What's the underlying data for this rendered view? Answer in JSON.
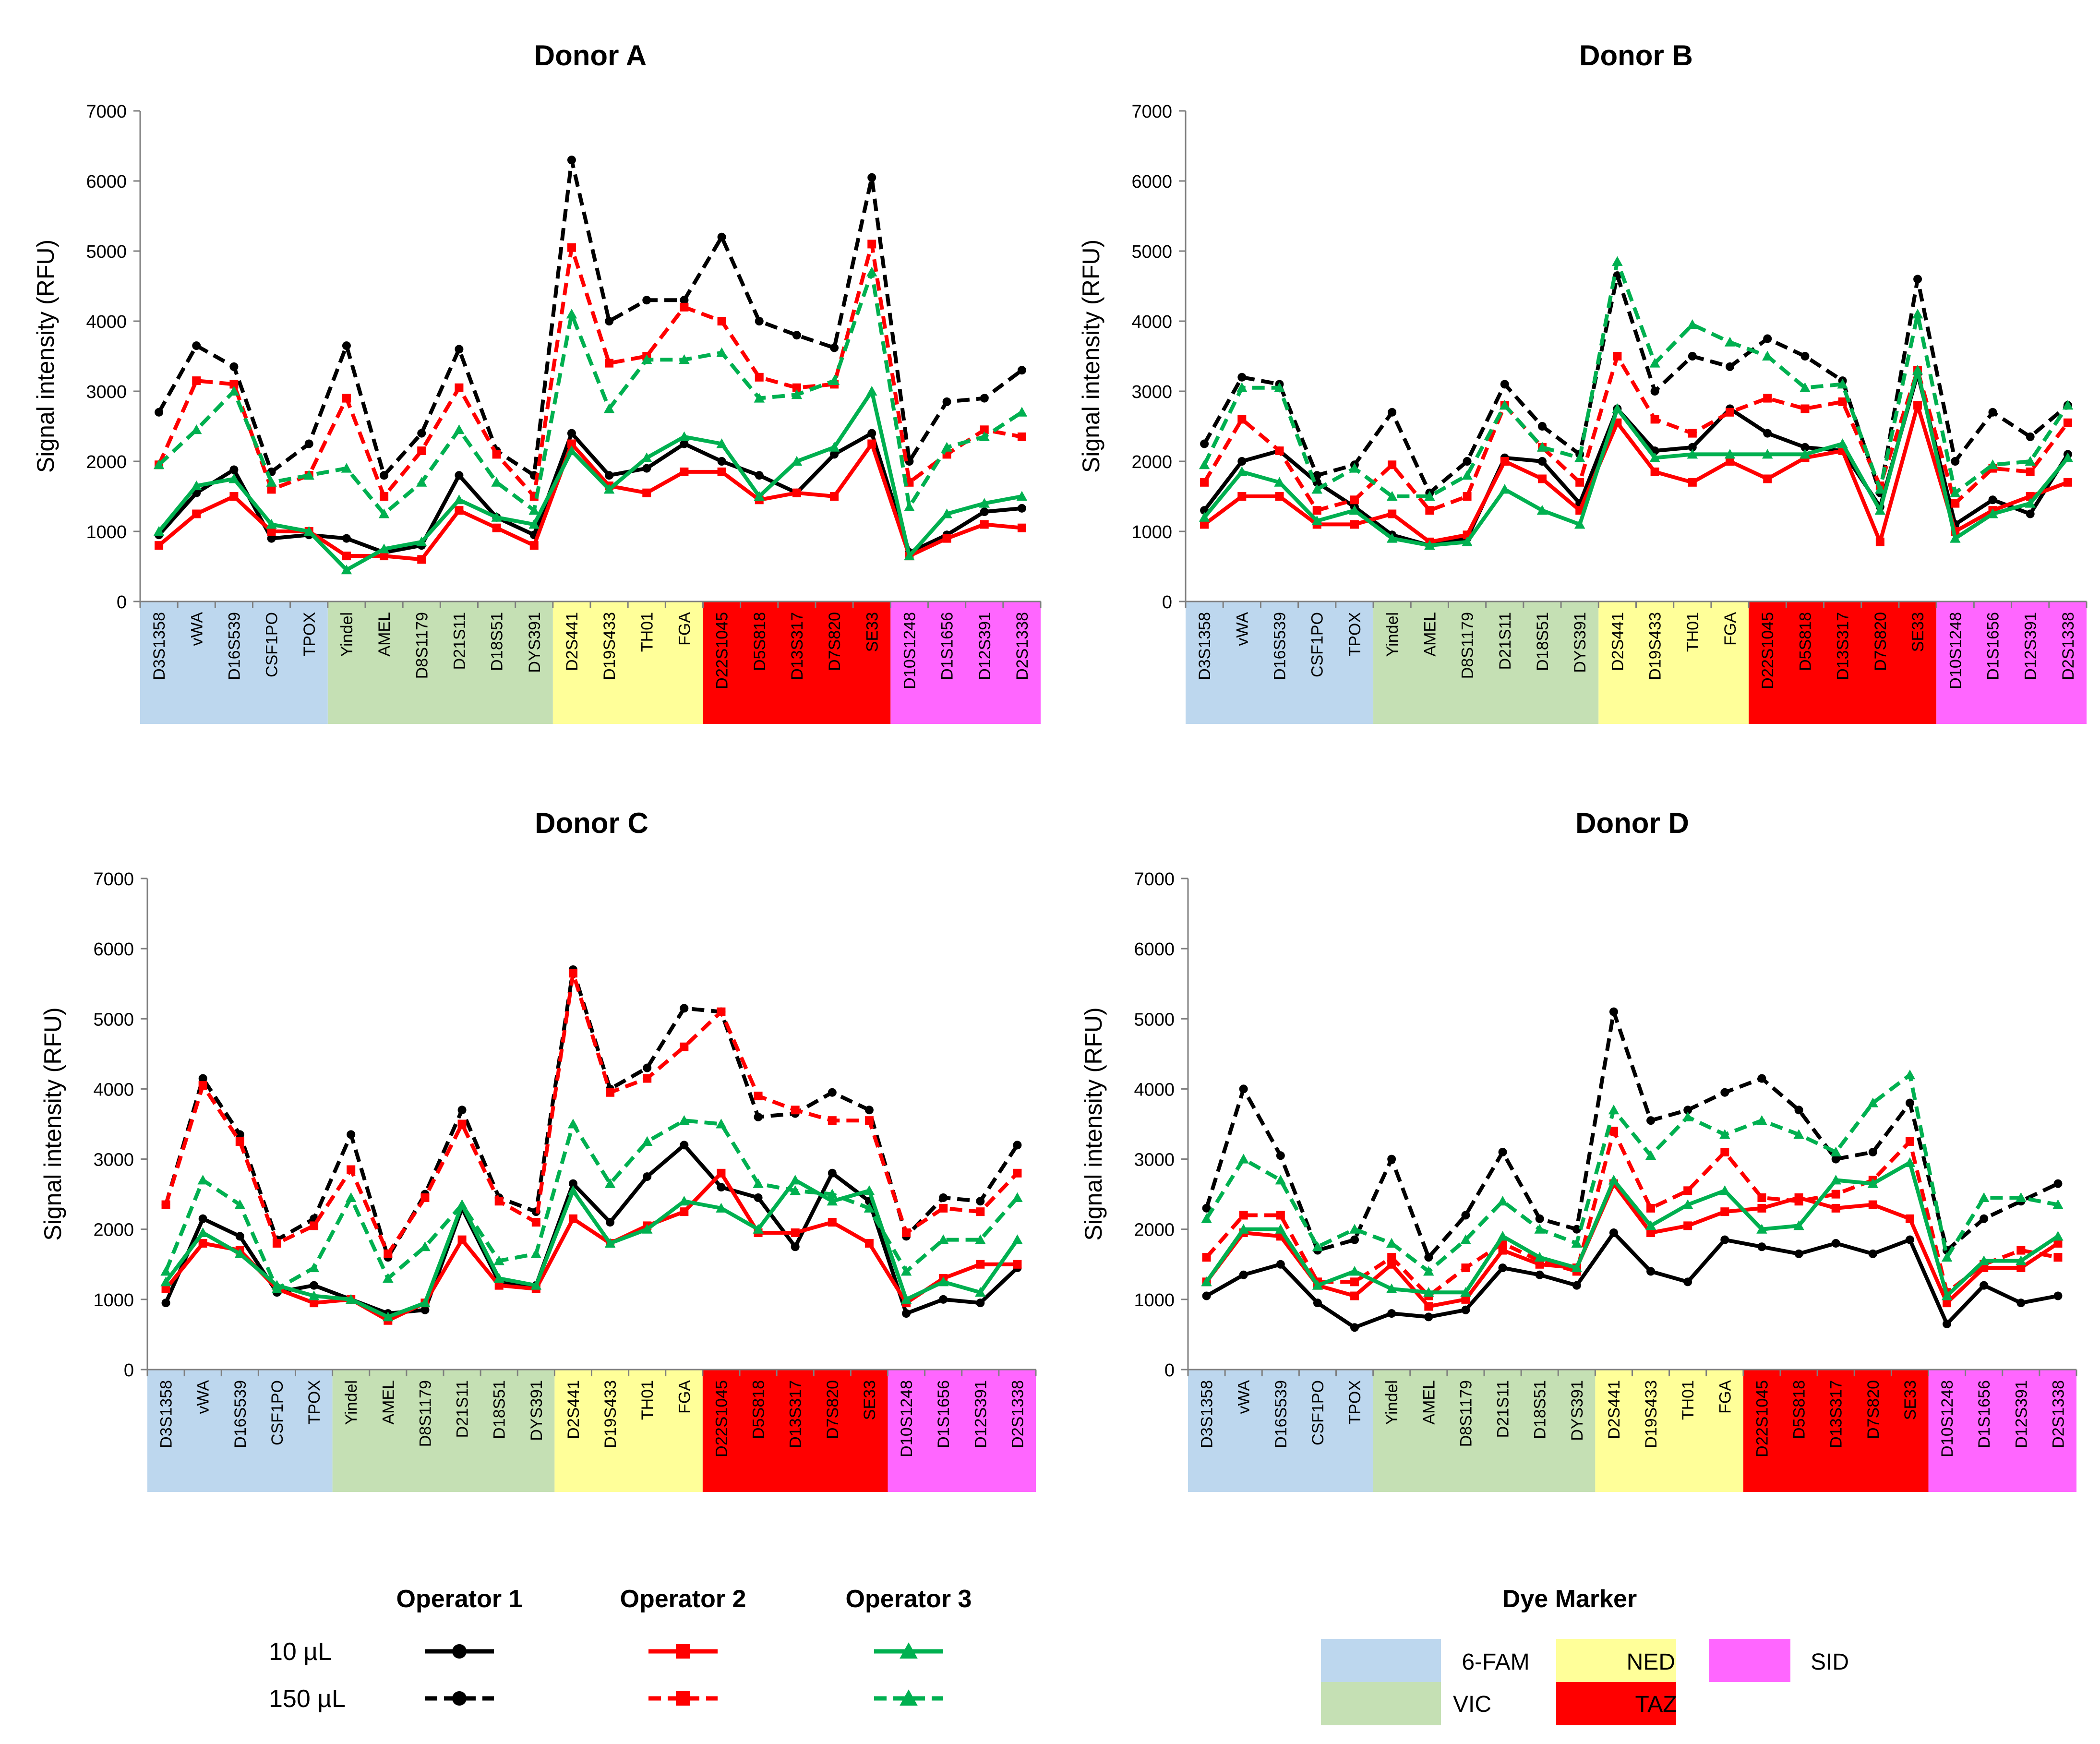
{
  "figure": {
    "y_axis_label": "Signal intensity (RFU)",
    "y_ticks": [
      "0",
      "1000",
      "2000",
      "3000",
      "4000",
      "5000",
      "6000",
      "7000"
    ]
  },
  "markers": [
    "D3S1358",
    "vWA",
    "D16S539",
    "CSF1PO",
    "TPOX",
    "Yindel",
    "AMEL",
    "D8S1179",
    "D21S11",
    "D18S51",
    "DYS391",
    "D2S441",
    "D19S433",
    "TH01",
    "FGA",
    "D22S1045",
    "D5S818",
    "D13S317",
    "D7S820",
    "SE33",
    "D10S1248",
    "D1S1656",
    "D12S391",
    "D2S1338"
  ],
  "dye_groups": [
    {
      "name": "6-FAM",
      "color": "#bdd7ee",
      "start": 0,
      "end": 4
    },
    {
      "name": "VIC",
      "color": "#c5e0b4",
      "start": 5,
      "end": 10
    },
    {
      "name": "NED",
      "color": "#ffff99",
      "start": 11,
      "end": 14
    },
    {
      "name": "TAZ",
      "color": "#ff0000",
      "start": 15,
      "end": 19
    },
    {
      "name": "SID",
      "color": "#ff66ff",
      "start": 20,
      "end": 23
    }
  ],
  "series_styles": [
    {
      "operator": "Operator 1",
      "volume": "10 µL",
      "color": "#000000",
      "dash": false,
      "marker": "circle"
    },
    {
      "operator": "Operator 1",
      "volume": "150 µL",
      "color": "#000000",
      "dash": true,
      "marker": "circle"
    },
    {
      "operator": "Operator 2",
      "volume": "10 µL",
      "color": "#ff0000",
      "dash": false,
      "marker": "square"
    },
    {
      "operator": "Operator 2",
      "volume": "150 µL",
      "color": "#ff0000",
      "dash": true,
      "marker": "square"
    },
    {
      "operator": "Operator 3",
      "volume": "10 µL",
      "color": "#00b050",
      "dash": false,
      "marker": "triangle"
    },
    {
      "operator": "Operator 3",
      "volume": "150 µL",
      "color": "#00b050",
      "dash": true,
      "marker": "triangle"
    }
  ],
  "chart_data": [
    {
      "type": "line",
      "title": "Donor A",
      "xlabel": "",
      "ylabel": "Signal intensity (RFU)",
      "ylim": [
        0,
        7000
      ],
      "series": [
        {
          "name": "Operator 1 10 µL",
          "values": [
            950,
            1550,
            1880,
            900,
            950,
            900,
            700,
            800,
            1800,
            1200,
            950,
            2400,
            1800,
            1900,
            2250,
            2000,
            1800,
            1550,
            2100,
            2400,
            700,
            950,
            1280,
            1330
          ]
        },
        {
          "name": "Operator 1 150 µL",
          "values": [
            2700,
            3650,
            3350,
            1850,
            2250,
            3650,
            1800,
            2400,
            3600,
            2150,
            1800,
            6300,
            4000,
            4300,
            4300,
            5200,
            4000,
            3800,
            3620,
            6050,
            2000,
            2850,
            2900,
            3300
          ]
        },
        {
          "name": "Operator 2 10 µL",
          "values": [
            800,
            1250,
            1500,
            1000,
            1000,
            650,
            650,
            600,
            1300,
            1050,
            800,
            2250,
            1650,
            1550,
            1850,
            1850,
            1450,
            1550,
            1500,
            2250,
            650,
            900,
            1100,
            1050
          ]
        },
        {
          "name": "Operator 2 150 µL",
          "values": [
            1950,
            3150,
            3100,
            1600,
            1800,
            2900,
            1500,
            2150,
            3050,
            2100,
            1500,
            5050,
            3400,
            3500,
            4200,
            4000,
            3200,
            3050,
            3100,
            5100,
            1700,
            2100,
            2450,
            2350
          ]
        },
        {
          "name": "Operator 3 10 µL",
          "values": [
            1000,
            1650,
            1750,
            1100,
            1000,
            450,
            750,
            850,
            1450,
            1200,
            1100,
            2150,
            1600,
            2050,
            2350,
            2250,
            1500,
            2000,
            2200,
            3000,
            650,
            1250,
            1400,
            1500
          ]
        },
        {
          "name": "Operator 3 150 µL",
          "values": [
            1950,
            2450,
            3000,
            1700,
            1800,
            1900,
            1250,
            1700,
            2450,
            1700,
            1300,
            4100,
            2750,
            3450,
            3450,
            3550,
            2900,
            2950,
            3150,
            4700,
            1350,
            2200,
            2350,
            2700
          ]
        }
      ]
    },
    {
      "type": "line",
      "title": "Donor B",
      "xlabel": "",
      "ylabel": "Signal intensity (RFU)",
      "ylim": [
        0,
        7000
      ],
      "series": [
        {
          "name": "Operator 1 10 µL",
          "values": [
            1300,
            2000,
            2150,
            1700,
            1350,
            950,
            800,
            900,
            2050,
            2000,
            1400,
            2750,
            2150,
            2200,
            2750,
            2400,
            2200,
            2150,
            1350,
            3250,
            1100,
            1450,
            1250,
            2100
          ]
        },
        {
          "name": "Operator 1 150 µL",
          "values": [
            2250,
            3200,
            3100,
            1800,
            1950,
            2700,
            1550,
            2000,
            3100,
            2500,
            2100,
            4650,
            3000,
            3500,
            3350,
            3750,
            3500,
            3150,
            1550,
            4600,
            2000,
            2700,
            2350,
            2800
          ]
        },
        {
          "name": "Operator 2 10 µL",
          "values": [
            1100,
            1500,
            1500,
            1100,
            1100,
            1250,
            850,
            950,
            2000,
            1750,
            1300,
            2550,
            1850,
            1700,
            2000,
            1750,
            2050,
            2150,
            850,
            2800,
            1000,
            1300,
            1500,
            1700
          ]
        },
        {
          "name": "Operator 2 150 µL",
          "values": [
            1700,
            2600,
            2150,
            1300,
            1450,
            1950,
            1300,
            1500,
            2800,
            2200,
            1700,
            3500,
            2600,
            2400,
            2700,
            2900,
            2750,
            2850,
            1650,
            3300,
            1400,
            1900,
            1850,
            2550
          ]
        },
        {
          "name": "Operator 3 10 µL",
          "values": [
            1200,
            1850,
            1700,
            1150,
            1300,
            900,
            800,
            850,
            1600,
            1300,
            1100,
            2750,
            2050,
            2100,
            2100,
            2100,
            2100,
            2250,
            1300,
            3300,
            900,
            1250,
            1400,
            2050
          ]
        },
        {
          "name": "Operator 3 150 µL",
          "values": [
            1950,
            3050,
            3050,
            1600,
            1900,
            1500,
            1500,
            1800,
            2800,
            2200,
            2050,
            4850,
            3400,
            3950,
            3700,
            3500,
            3050,
            3100,
            1600,
            4100,
            1550,
            1950,
            2000,
            2800
          ]
        }
      ]
    },
    {
      "type": "line",
      "title": "Donor C",
      "xlabel": "",
      "ylabel": "Signal intensity (RFU)",
      "ylim": [
        0,
        7000
      ],
      "series": [
        {
          "name": "Operator 1 10 µL",
          "values": [
            950,
            2150,
            1900,
            1100,
            1200,
            1000,
            800,
            850,
            2300,
            1250,
            1200,
            2650,
            2100,
            2750,
            3200,
            2600,
            2450,
            1750,
            2800,
            2400,
            800,
            1000,
            950,
            1450
          ]
        },
        {
          "name": "Operator 1 150 µL",
          "values": [
            2350,
            4150,
            3350,
            1850,
            2150,
            3350,
            1600,
            2500,
            3700,
            2450,
            2250,
            5700,
            4000,
            4300,
            5150,
            5100,
            3600,
            3650,
            3950,
            3700,
            1900,
            2450,
            2400,
            3200
          ]
        },
        {
          "name": "Operator 2 10 µL",
          "values": [
            1150,
            1800,
            1700,
            1150,
            950,
            1000,
            700,
            950,
            1850,
            1200,
            1150,
            2150,
            1800,
            2050,
            2250,
            2800,
            1950,
            1950,
            2100,
            1800,
            950,
            1300,
            1500,
            1500
          ]
        },
        {
          "name": "Operator 2 150 µL",
          "values": [
            2350,
            4050,
            3250,
            1800,
            2050,
            2850,
            1650,
            2450,
            3500,
            2400,
            2100,
            5650,
            3950,
            4150,
            4600,
            5100,
            3900,
            3700,
            3550,
            3550,
            1950,
            2300,
            2250,
            2800
          ]
        },
        {
          "name": "Operator 3 10 µL",
          "values": [
            1250,
            1950,
            1650,
            1200,
            1050,
            1000,
            750,
            950,
            2350,
            1300,
            1200,
            2550,
            1800,
            2000,
            2400,
            2300,
            2000,
            2700,
            2400,
            2550,
            1000,
            1250,
            1100,
            1850
          ]
        },
        {
          "name": "Operator 3 150 µL",
          "values": [
            1400,
            2700,
            2350,
            1150,
            1450,
            2450,
            1300,
            1750,
            2350,
            1550,
            1650,
            3500,
            2650,
            3250,
            3550,
            3500,
            2650,
            2550,
            2500,
            2300,
            1400,
            1850,
            1850,
            2450
          ]
        }
      ]
    },
    {
      "type": "line",
      "title": "Donor D",
      "xlabel": "",
      "ylabel": "Signal intensity (RFU)",
      "ylim": [
        0,
        7000
      ],
      "series": [
        {
          "name": "Operator 1 10 µL",
          "values": [
            1050,
            1350,
            1500,
            950,
            600,
            800,
            750,
            850,
            1450,
            1350,
            1200,
            1950,
            1400,
            1250,
            1850,
            1750,
            1650,
            1800,
            1650,
            1850,
            650,
            1200,
            950,
            1050
          ]
        },
        {
          "name": "Operator 1 150 µL",
          "values": [
            2300,
            4000,
            3050,
            1700,
            1850,
            3000,
            1600,
            2200,
            3100,
            2150,
            2000,
            5100,
            3550,
            3700,
            3950,
            4150,
            3700,
            3000,
            3100,
            3800,
            1700,
            2150,
            2400,
            2650
          ]
        },
        {
          "name": "Operator 2 10 µL",
          "values": [
            1250,
            1950,
            1900,
            1200,
            1050,
            1500,
            900,
            1000,
            1700,
            1500,
            1450,
            2650,
            1950,
            2050,
            2250,
            2300,
            2450,
            2300,
            2350,
            2150,
            950,
            1450,
            1450,
            1800
          ]
        },
        {
          "name": "Operator 2 150 µL",
          "values": [
            1600,
            2200,
            2200,
            1250,
            1250,
            1600,
            1050,
            1450,
            1800,
            1550,
            1400,
            3400,
            2300,
            2550,
            3100,
            2450,
            2400,
            2500,
            2700,
            3250,
            1100,
            1500,
            1700,
            1600
          ]
        },
        {
          "name": "Operator 3 10 µL",
          "values": [
            1250,
            2000,
            2000,
            1200,
            1400,
            1150,
            1100,
            1100,
            1900,
            1600,
            1450,
            2700,
            2050,
            2350,
            2550,
            2000,
            2050,
            2700,
            2650,
            2950,
            1050,
            1550,
            1550,
            1900
          ]
        },
        {
          "name": "Operator 3 150 µL",
          "values": [
            2150,
            3000,
            2700,
            1750,
            2000,
            1800,
            1400,
            1850,
            2400,
            2000,
            1800,
            3700,
            3050,
            3600,
            3350,
            3550,
            3350,
            3100,
            3800,
            4200,
            1600,
            2450,
            2450,
            2350
          ]
        }
      ]
    }
  ],
  "legend": {
    "operator_headers": [
      "Operator 1",
      "Operator 2",
      "Operator 3"
    ],
    "row_labels": [
      "10 µL",
      "150 µL"
    ],
    "dye_title": "Dye Marker",
    "dye_items": [
      {
        "name": "6-FAM",
        "color": "#bdd7ee"
      },
      {
        "name": "NED",
        "color": "#ffff99"
      },
      {
        "name": "SID",
        "color": "#ff66ff"
      },
      {
        "name": "VIC",
        "color": "#c5e0b4"
      },
      {
        "name": "TAZ",
        "color": "#ff0000"
      }
    ]
  }
}
